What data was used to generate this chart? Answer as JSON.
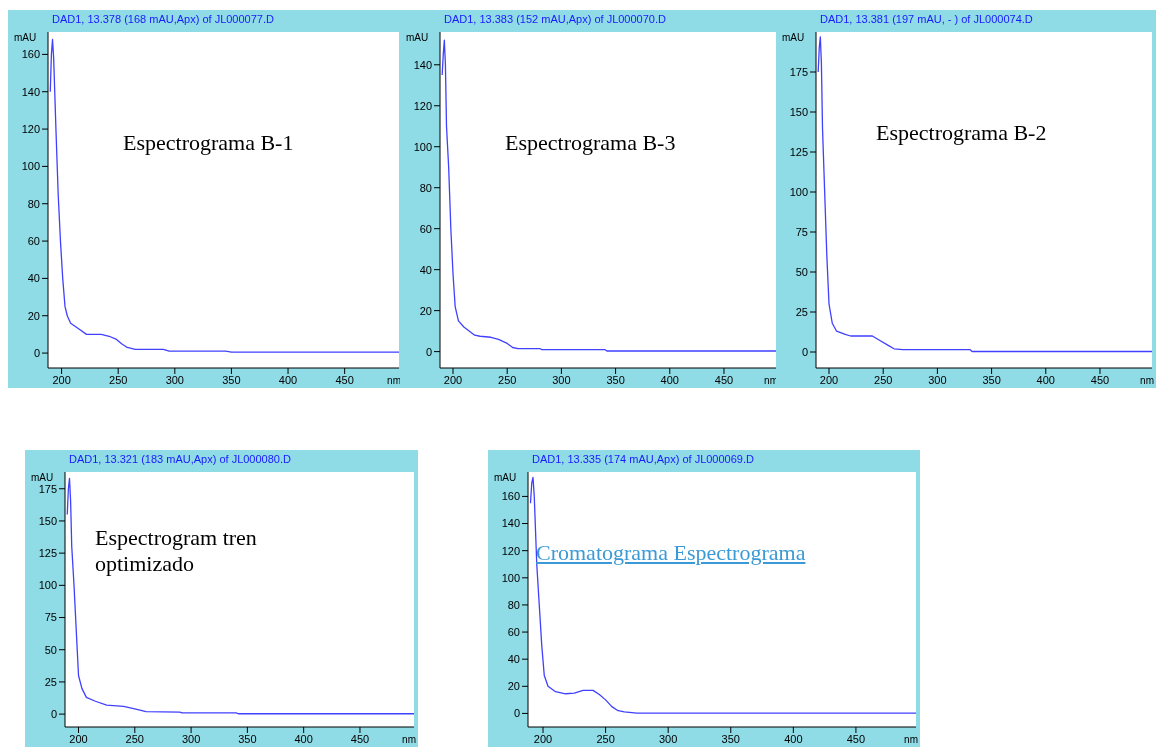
{
  "chart_data": [
    {
      "type": "line",
      "title": "DAD1, 13.378 (168 mAU,Apx) of JL000077.D",
      "xlabel": "nm",
      "ylabel": "mAU",
      "annotations": [
        "Espectrograma B-1"
      ],
      "xlim": [
        188,
        498
      ],
      "xticks": [
        200,
        250,
        300,
        350,
        400,
        450
      ],
      "ylim": [
        -8,
        172
      ],
      "yticks": [
        0,
        20,
        40,
        60,
        80,
        100,
        120,
        140,
        160
      ],
      "series": [
        {
          "color": "#4040ff",
          "x": [
            190,
            191,
            192,
            193,
            195,
            197,
            199,
            201,
            203,
            205,
            208,
            215,
            222,
            235,
            242,
            248,
            253,
            258,
            265,
            290,
            295,
            345,
            350,
            498
          ],
          "values": [
            140,
            160,
            168,
            158,
            120,
            85,
            60,
            40,
            25,
            20,
            16,
            13,
            10,
            10,
            9,
            7.5,
            5,
            3,
            2,
            2,
            1,
            1,
            0.5,
            0.5
          ]
        }
      ]
    },
    {
      "type": "line",
      "title": "DAD1, 13.383 (152 mAU,Apx) of JL000070.D",
      "xlabel": "nm",
      "ylabel": "mAU",
      "annotations": [
        "Espectrograma B-3"
      ],
      "xlim": [
        188,
        498
      ],
      "xticks": [
        200,
        250,
        300,
        350,
        400,
        450
      ],
      "ylim": [
        -8,
        156
      ],
      "yticks": [
        0,
        20,
        40,
        60,
        80,
        100,
        120,
        140
      ],
      "series": [
        {
          "color": "#4040ff",
          "x": [
            190,
            191,
            192,
            193,
            194,
            196,
            198,
            200,
            202,
            205,
            210,
            220,
            225,
            235,
            242,
            250,
            255,
            260,
            280,
            282,
            340,
            342,
            498
          ],
          "values": [
            135,
            145,
            152,
            140,
            110,
            90,
            60,
            38,
            22,
            15,
            12,
            8,
            7.5,
            7,
            6,
            4,
            2,
            1.5,
            1.5,
            1,
            1,
            0.3,
            0.3
          ]
        }
      ]
    },
    {
      "type": "line",
      "title": "DAD1, 13.381 (197 mAU, - ) of JL000074.D",
      "xlabel": "nm",
      "ylabel": "mAU",
      "annotations": [
        "Espectrograma B-2"
      ],
      "xlim": [
        188,
        498
      ],
      "xticks": [
        200,
        250,
        300,
        350,
        400,
        450
      ],
      "ylim": [
        -10,
        200
      ],
      "yticks": [
        0,
        25,
        50,
        75,
        100,
        125,
        150,
        175
      ],
      "series": [
        {
          "color": "#4040ff",
          "x": [
            190,
            191,
            192,
            193,
            194,
            196,
            198,
            200,
            203,
            207,
            215,
            220,
            240,
            245,
            255,
            260,
            268,
            330,
            332,
            498
          ],
          "values": [
            175,
            190,
            197,
            180,
            140,
            100,
            60,
            30,
            18,
            13,
            11,
            10,
            10,
            8,
            4,
            2,
            1.5,
            1.5,
            0.3,
            0.3
          ]
        }
      ]
    },
    {
      "type": "line",
      "title": "DAD1, 13.321 (183 mAU,Apx) of JL000080.D",
      "xlabel": "nm",
      "ylabel": "mAU",
      "annotations": [
        "Espectrogram  tren optimizado"
      ],
      "xlim": [
        188,
        498
      ],
      "xticks": [
        200,
        250,
        300,
        350,
        400,
        450
      ],
      "ylim": [
        -10,
        188
      ],
      "yticks": [
        0,
        25,
        50,
        75,
        100,
        125,
        150,
        175
      ],
      "series": [
        {
          "color": "#4040ff",
          "x": [
            190,
            191,
            192,
            193,
            194,
            196,
            198,
            200,
            203,
            207,
            215,
            225,
            240,
            250,
            260,
            290,
            292,
            340,
            342,
            498
          ],
          "values": [
            155,
            175,
            183,
            165,
            130,
            100,
            65,
            30,
            20,
            13,
            10,
            7,
            6,
            4,
            2,
            1.5,
            1,
            1,
            0.3,
            0.3
          ]
        }
      ]
    },
    {
      "type": "line",
      "title": "DAD1, 13.335 (174 mAU,Apx) of JL000069.D",
      "xlabel": "nm",
      "ylabel": "mAU",
      "annotations": [
        "Cromatograma Espectrograma"
      ],
      "xlim": [
        188,
        498
      ],
      "xticks": [
        200,
        250,
        300,
        350,
        400,
        450
      ],
      "ylim": [
        -10,
        178
      ],
      "yticks": [
        0,
        20,
        40,
        60,
        80,
        100,
        120,
        140,
        160
      ],
      "series": [
        {
          "color": "#4040ff",
          "x": [
            190,
            191,
            192,
            193,
            195,
            197,
            199,
            201,
            204,
            210,
            218,
            225,
            232,
            240,
            245,
            250,
            255,
            260,
            265,
            275,
            498
          ],
          "values": [
            155,
            170,
            174,
            160,
            110,
            80,
            50,
            28,
            20,
            16,
            14.5,
            15,
            17,
            17,
            14,
            10,
            5,
            2,
            1.2,
            0.3,
            0.3
          ]
        }
      ]
    }
  ]
}
